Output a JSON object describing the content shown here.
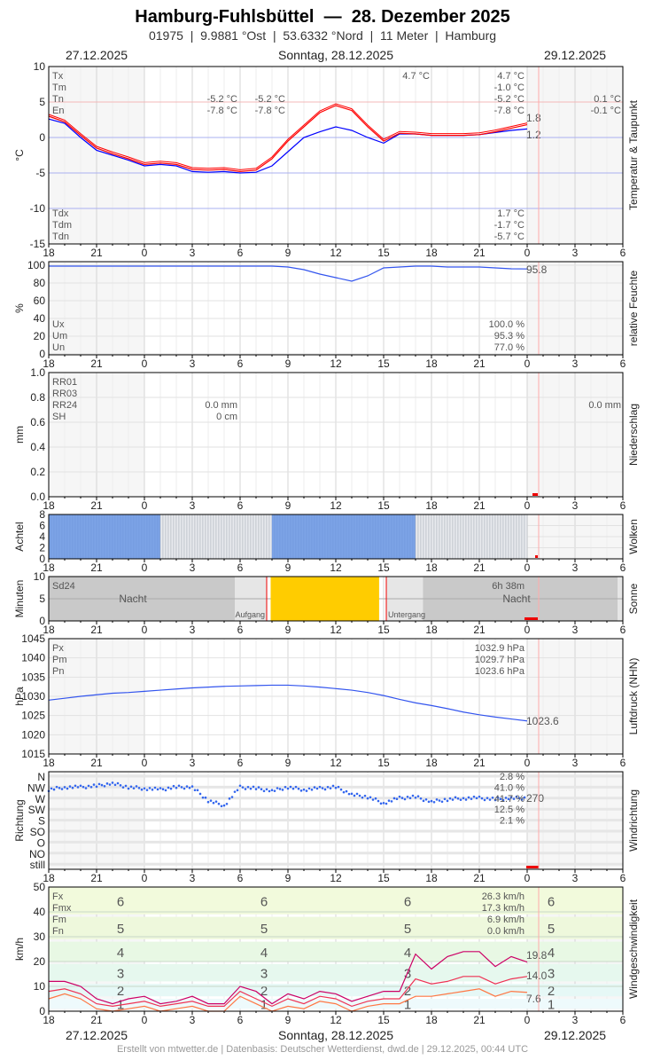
{
  "header": {
    "title": "Hamburg-Fuhlsbüttel  —  28. Dezember 2025",
    "subtitle": "01975  |  9.9881 °Ost  |  53.6332 °Nord  |  11 Meter  |  Hamburg",
    "date_left": "27.12.2025",
    "date_center": "Sonntag, 28.12.2025",
    "date_right": "29.12.2025"
  },
  "footer": {
    "credit": "Erstellt von mtwetter.de | Datenbasis: Deutscher Wetterdienst, dwd.de | 29.12.2025, 00:44 UTC"
  },
  "chart_data": {
    "type": "line",
    "x_axis": {
      "ticks": [
        "18",
        "21",
        "0",
        "3",
        "6",
        "9",
        "12",
        "15",
        "18",
        "21",
        "0",
        "3",
        "6"
      ],
      "range": [
        "27.12.2025 18:00",
        "29.12.2025 06:00"
      ],
      "current_time": "29.12.2025 00:44"
    },
    "times": [
      "27.12. 18:00",
      "27.12. 19:00",
      "27.12. 20:00",
      "27.12. 21:00",
      "27.12. 22:00",
      "27.12. 23:00",
      "28.12. 00:00",
      "28.12. 01:00",
      "28.12. 02:00",
      "28.12. 03:00",
      "28.12. 04:00",
      "28.12. 05:00",
      "28.12. 06:00",
      "28.12. 07:00",
      "28.12. 08:00",
      "28.12. 09:00",
      "28.12. 10:00",
      "28.12. 11:00",
      "28.12. 12:00",
      "28.12. 13:00",
      "28.12. 14:00",
      "28.12. 15:00",
      "28.12. 16:00",
      "28.12. 17:00",
      "28.12. 18:00",
      "28.12. 19:00",
      "28.12. 20:00",
      "28.12. 21:00",
      "28.12. 22:00",
      "28.12. 23:00",
      "29.12. 00:00"
    ],
    "temperature": {
      "ylabel": "°C",
      "title": "Temperatur & Taupunkt",
      "ylim": [
        -15,
        10
      ],
      "yticks": [
        "10",
        "5",
        "0",
        "-5",
        "-10",
        "-15"
      ],
      "colors": {
        "temperature": "#ff0000",
        "dewpoint": "#0000ff"
      },
      "series": {
        "temperature": [
          3.0,
          2.2,
          0.3,
          -1.5,
          -2.3,
          -3.0,
          -3.8,
          -3.6,
          -3.8,
          -4.5,
          -4.6,
          -4.5,
          -4.8,
          -4.6,
          -3.0,
          -0.5,
          1.5,
          3.5,
          4.5,
          3.8,
          1.5,
          -0.5,
          0.6,
          0.5,
          0.3,
          0.3,
          0.3,
          0.4,
          0.8,
          1.3,
          1.8
        ],
        "dewpoint": [
          2.6,
          2.0,
          0.0,
          -1.8,
          -2.5,
          -3.2,
          -4.0,
          -3.8,
          -4.0,
          -4.8,
          -4.9,
          -4.8,
          -5.0,
          -4.9,
          -4.0,
          -2.0,
          0.0,
          0.8,
          1.5,
          1.0,
          0.0,
          -0.8,
          0.5,
          0.5,
          0.3,
          0.3,
          0.3,
          0.4,
          0.7,
          1.0,
          1.2
        ]
      },
      "end_labels": {
        "temperature": "1.8",
        "dewpoint": "1.2"
      },
      "stats": {
        "labels": [
          "Tx",
          "Tm",
          "Tn",
          "En"
        ],
        "values": [
          "4.7 °C",
          "-1.0 °C",
          "-5.2 °C",
          "-7.8 °C"
        ],
        "tx_day": "4.7 °C",
        "tn_prev": [
          "-5.2 °C",
          "-5.2 °C"
        ],
        "en_prev": [
          "-7.8 °C",
          "-7.8 °C"
        ],
        "next_tn": "0.1 °C",
        "next_en": "-0.1 °C",
        "dew_labels": [
          "Tdx",
          "Tdm",
          "Tdn"
        ],
        "dew_values": [
          "1.7 °C",
          "-1.7 °C",
          "-5.7 °C"
        ]
      }
    },
    "humidity": {
      "ylabel": "%",
      "title": "relative Feuchte",
      "ylim": [
        0,
        100
      ],
      "yticks": [
        "100",
        "80",
        "60",
        "40",
        "20",
        "0"
      ],
      "color": "#3355ee",
      "values": [
        99,
        99,
        99,
        99,
        99,
        99,
        99,
        99,
        99,
        99,
        99,
        99,
        99,
        99,
        99,
        98,
        95,
        90,
        86,
        82,
        88,
        97,
        98,
        99,
        99,
        98,
        98,
        98,
        97,
        96,
        95.8
      ],
      "end_label": "95.8",
      "stats": {
        "labels": [
          "Ux",
          "Um",
          "Un"
        ],
        "values": [
          "100.0 %",
          "95.3 %",
          "77.0 %"
        ]
      }
    },
    "precipitation": {
      "ylabel": "mm",
      "title": "Niederschlag",
      "ylim": [
        0,
        1.0
      ],
      "yticks": [
        "1.0",
        "0.8",
        "0.6",
        "0.4",
        "0.2",
        "0.0"
      ],
      "stats": {
        "labels": [
          "RR01",
          "RR03",
          "RR24",
          "SH"
        ],
        "rr24": "0.0 mm",
        "sh": "0 cm",
        "rr24_next": "0.0 mm"
      }
    },
    "clouds": {
      "ylabel": "Achtel",
      "title": "Wolken",
      "ylim": [
        0,
        8
      ],
      "yticks": [
        "8",
        "6",
        "4",
        "2",
        "0"
      ],
      "colors": {
        "observed": "#7ca3e6",
        "not_determinable": "#e8eaee"
      },
      "okta": [
        8,
        8,
        8,
        8,
        8,
        8,
        8,
        null,
        null,
        null,
        null,
        null,
        null,
        null,
        8,
        8,
        8,
        8,
        8,
        8,
        8,
        8,
        8,
        null,
        null,
        null,
        null,
        null,
        null,
        null,
        null
      ]
    },
    "sunshine": {
      "ylabel": "Minuten",
      "title": "Sonne",
      "ylim": [
        0,
        10
      ],
      "yticks": [
        "10",
        "5",
        "0"
      ],
      "color": "#ffcc00",
      "sunshine_from": "07:55",
      "sunshine_to": "14:43",
      "minutes_per_10min": 10,
      "sunrise": "07:40",
      "sunset": "15:10",
      "sd24_label": "Sd24",
      "sd24": "6h 38m",
      "night_label": "Nacht",
      "sunrise_label": "Aufgang",
      "sunset_label": "Untergang"
    },
    "pressure": {
      "ylabel": "hPa",
      "title": "Luftdruck (NHN)",
      "ylim": [
        1015,
        1045
      ],
      "yticks": [
        "1045",
        "1040",
        "1035",
        "1030",
        "1025",
        "1020",
        "1015"
      ],
      "color": "#3355ee",
      "values": [
        1029,
        1029.5,
        1030,
        1030.4,
        1030.8,
        1031,
        1031.3,
        1031.6,
        1031.9,
        1032.2,
        1032.4,
        1032.6,
        1032.7,
        1032.8,
        1032.9,
        1032.9,
        1032.7,
        1032.4,
        1032,
        1031.6,
        1031,
        1030.2,
        1029.2,
        1028.3,
        1027.6,
        1026.8,
        1025.9,
        1025.2,
        1024.6,
        1024.1,
        1023.6
      ],
      "end_label": "1023.6",
      "stats": {
        "labels": [
          "Px",
          "Pm",
          "Pn"
        ],
        "values": [
          "1032.9 hPa",
          "1029.7 hPa",
          "1023.6 hPa"
        ]
      }
    },
    "wind_direction": {
      "ylabel": "Richtung",
      "title": "Windrichtung",
      "type": "scatter",
      "color": "#3366ee",
      "categories": [
        "N",
        "NW",
        "W",
        "SW",
        "S",
        "SO",
        "O",
        "NO",
        "still"
      ],
      "degrees": [
        305,
        315,
        315,
        320,
        330,
        315,
        310,
        305,
        315,
        315,
        260,
        240,
        315,
        310,
        300,
        315,
        305,
        310,
        315,
        285,
        275,
        250,
        270,
        275,
        255,
        265,
        270,
        270,
        265,
        270,
        270
      ],
      "end_label": "270",
      "frequency": [
        "2.8 %",
        "41.0 %",
        "41.7 %",
        "12.5 %",
        "2.1 %"
      ]
    },
    "wind_speed": {
      "ylabel": "km/h",
      "title": "Windgeschwindigkeit",
      "ylim": [
        0,
        50
      ],
      "yticks": [
        "50",
        "40",
        "30",
        "20",
        "10",
        "0"
      ],
      "colors": {
        "Fx": "#cc0066",
        "Fmx": "#555555",
        "Fm": "#ee3355",
        "Fn": "#ff7744"
      },
      "beaufort": [
        "1",
        "2",
        "3",
        "4",
        "5",
        "6"
      ],
      "series": {
        "Fx": [
          12,
          12,
          10,
          5,
          3,
          5,
          6,
          3,
          4,
          6,
          3,
          3,
          10,
          8,
          3,
          7,
          5,
          8,
          7,
          4,
          6,
          8,
          8,
          23,
          17,
          22,
          24,
          24,
          18,
          22,
          19.8
        ],
        "Fm": [
          8,
          9,
          7,
          3,
          2,
          3,
          4,
          2,
          3,
          4,
          2,
          2,
          8,
          5,
          2,
          5,
          3,
          6,
          5,
          2,
          4,
          5,
          5,
          13,
          11,
          12,
          14,
          14,
          11,
          13,
          14.0
        ],
        "Fn": [
          5,
          7,
          5,
          1,
          0,
          1,
          2,
          0,
          1,
          2,
          0,
          0,
          6,
          3,
          0,
          2,
          1,
          4,
          3,
          0,
          2,
          3,
          3,
          6,
          6,
          7,
          8,
          9,
          6,
          8,
          7.6
        ]
      },
      "end_labels": {
        "Fx": "19.8",
        "Fm": "14.0",
        "Fn": "7.6"
      },
      "stats": {
        "labels": [
          "Fx",
          "Fmx",
          "Fm",
          "Fn"
        ],
        "values": [
          "26.3 km/h",
          "17.3 km/h",
          "6.9 km/h",
          "0.0 km/h"
        ]
      }
    }
  }
}
